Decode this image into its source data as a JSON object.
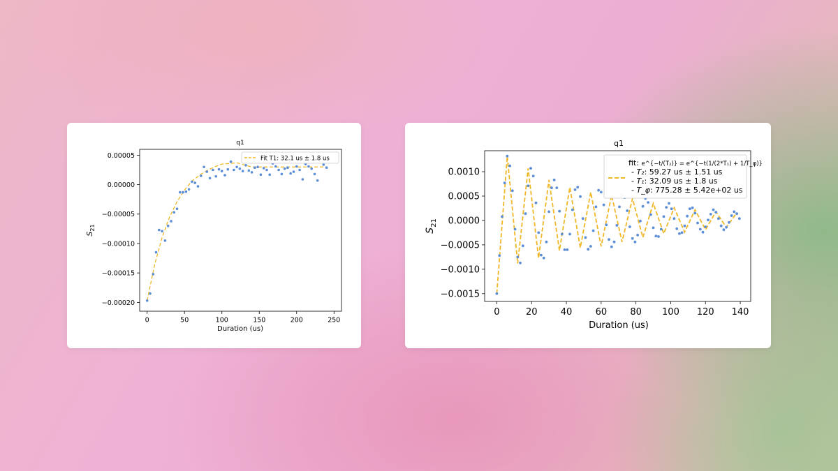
{
  "charts": [
    {
      "type": "scatter",
      "title": "q1",
      "xlabel": "Duration (us)",
      "ylabel_main": "S",
      "ylabel_sub": "21",
      "xlim": [
        -10,
        260
      ],
      "ylim": [
        -0.000215,
        6e-05
      ],
      "xticks": [
        0,
        50,
        100,
        150,
        200,
        250
      ],
      "xtick_labels": [
        "0",
        "50",
        "100",
        "150",
        "200",
        "250"
      ],
      "yticks": [
        5e-05,
        0.0,
        -5e-05,
        -0.0001,
        -0.00015,
        -0.0002
      ],
      "ytick_labels": [
        "0.00005",
        "0.00000",
        "−0.00005",
        "−0.00010",
        "−0.00015",
        "−0.00020"
      ],
      "legend_position": "top-right",
      "legend_label": "Fit T1: 32.1 us ± 1.8 us"
    },
    {
      "type": "scatter",
      "title": "q1",
      "xlabel": "Duration (us)",
      "ylabel_main": "S",
      "ylabel_sub": "21",
      "xlim": [
        -7,
        146
      ],
      "ylim": [
        -0.00166,
        0.00143
      ],
      "xticks": [
        0,
        20,
        40,
        60,
        80,
        100,
        120,
        140
      ],
      "xtick_labels": [
        "0",
        "20",
        "40",
        "60",
        "80",
        "100",
        "120",
        "140"
      ],
      "yticks": [
        0.001,
        0.0005,
        0.0,
        -0.0005,
        -0.001,
        -0.0015
      ],
      "ytick_labels": [
        "0.0010",
        "0.0005",
        "0.0000",
        "−0.0005",
        "−0.0010",
        "−0.0015"
      ],
      "legend_position": "top-right",
      "legend_line1_prefix": "fit: ",
      "legend_line1_formula": "e^{−t/(T₂)} = e^{−t(1/(2*T₁) + 1/T_φ)}",
      "legend_line2_label": "- T₂",
      "legend_line2_value": ": 59.27 us ± 1.51 us",
      "legend_line3_label": "- T₁",
      "legend_line3_value": ": 32.09 us ± 1.8 us",
      "legend_line4_label": "- T_φ",
      "legend_line4_value": ": 775.28 ± 5.42e+02 us"
    }
  ],
  "chart_data": [
    {
      "type": "scatter",
      "title": "q1",
      "xlabel": "Duration (us)",
      "ylabel": "S_21",
      "xlim": [
        -10,
        260
      ],
      "ylim": [
        -0.000215,
        6e-05
      ],
      "grid": false,
      "series": [
        {
          "name": "data",
          "color": "#5b8ed6",
          "x": [
            0,
            4,
            8,
            12,
            16,
            20,
            24,
            28,
            32,
            36,
            40,
            44,
            48,
            52,
            56,
            60,
            64,
            68,
            72,
            76,
            80,
            84,
            88,
            92,
            96,
            100,
            104,
            108,
            112,
            116,
            120,
            124,
            128,
            132,
            136,
            140,
            144,
            148,
            152,
            156,
            160,
            164,
            168,
            172,
            176,
            180,
            184,
            188,
            192,
            196,
            200,
            204,
            208,
            212,
            216,
            220,
            224,
            228,
            232,
            236,
            240
          ],
          "y": [
            -0.000197,
            -0.000185,
            -0.000152,
            -0.000115,
            -7.7e-05,
            -7.9e-05,
            -9.5e-05,
            -7e-05,
            -6.2e-05,
            -4.7e-05,
            -4.1e-05,
            -1.3e-05,
            -1.3e-05,
            -1.2e-05,
            -8e-06,
            5e-06,
            3e-06,
            -3e-06,
            1.5e-05,
            3e-05,
            2.2e-05,
            1.1e-05,
            2.5e-05,
            1.4e-05,
            2.6e-05,
            2.3e-05,
            1.6e-05,
            2.6e-05,
            3.9e-05,
            2.5e-05,
            3e-05,
            2.7e-05,
            2.3e-05,
            3.3e-05,
            2.4e-05,
            2.1e-05,
            2.9e-05,
            3e-05,
            1.7e-05,
            2.8e-05,
            2.5e-05,
            1.7e-05,
            3.6e-05,
            3.1e-05,
            2.5e-05,
            1.8e-05,
            2.7e-05,
            2.9e-05,
            1.9e-05,
            2.2e-05,
            3.1e-05,
            2.5e-05,
            9e-06,
            3.5e-05,
            3.1e-05,
            2.7e-05,
            1.8e-05,
            7e-06,
            4e-05,
            3.4e-05,
            2.9e-05
          ]
        },
        {
          "name": "Fit T1: 32.1 us ± 1.8 us",
          "color": "#f0b828",
          "style": "dashed",
          "model": "y = 0.00003 - 0.000227 * exp(-x/32.1)",
          "x": [
            0,
            10,
            20,
            30,
            40,
            50,
            60,
            70,
            80,
            90,
            100,
            120,
            140,
            160,
            180,
            200,
            220,
            240
          ],
          "y": [
            -0.000197,
            -0.000136,
            -9e-05,
            -5.5e-05,
            -2.9e-05,
            -9e-06,
            6e-06,
            1.6e-05,
            2.4e-05,
            3e-05,
            3.5e-05,
            3.7e-05,
            3e-05,
            3e-05,
            3e-05,
            3e-05,
            3e-05,
            3e-05
          ]
        }
      ]
    },
    {
      "type": "scatter",
      "title": "q1",
      "xlabel": "Duration (us)",
      "ylabel": "S_21",
      "xlim": [
        -7,
        146
      ],
      "ylim": [
        -0.00166,
        0.00143
      ],
      "grid": false,
      "series": [
        {
          "name": "data",
          "color": "#5b8ed6",
          "x": [
            0,
            1.5,
            3,
            4.5,
            6,
            7.5,
            9,
            10.5,
            12,
            13.5,
            15,
            16.5,
            18,
            19.5,
            21,
            22.5,
            24,
            25.5,
            27,
            28.5,
            30,
            31.5,
            33,
            34.5,
            36,
            37.5,
            39,
            40.5,
            42,
            43.5,
            45,
            46.5,
            48,
            49.5,
            51,
            52.5,
            54,
            55.5,
            57,
            58.5,
            60,
            61.5,
            63,
            64.5,
            66,
            67.5,
            69,
            70.5,
            72,
            73.5,
            75,
            76.5,
            78,
            79.5,
            81,
            82.5,
            84,
            85.5,
            87,
            88.5,
            90,
            91.5,
            93,
            94.5,
            96,
            97.5,
            99,
            100.5,
            102,
            103.5,
            105,
            106.5,
            108,
            109.5,
            111,
            112.5,
            114,
            115.5,
            117,
            118.5,
            120,
            121.5,
            123,
            124.5,
            126,
            127.5,
            129,
            130.5,
            132,
            133.5,
            135,
            136.5,
            138,
            139.5
          ],
          "y": [
            -0.0015,
            -0.00072,
            8e-05,
            0.00077,
            0.00132,
            0.00112,
            0.00061,
            -0.00018,
            -0.00075,
            -0.00087,
            -0.00052,
            0.00014,
            0.00071,
            0.00107,
            0.00091,
            0.00036,
            -0.00025,
            -0.00071,
            -0.00077,
            -0.00044,
            0.00018,
            0.00067,
            0.00083,
            0.00067,
            0.00019,
            -0.00028,
            -0.0006,
            -0.0006,
            -0.00028,
            0.00022,
            0.00063,
            0.00068,
            0.00049,
            4e-05,
            -0.00035,
            -0.00059,
            -0.00053,
            -0.00021,
            0.00028,
            0.00062,
            0.00058,
            0.00032,
            -9e-05,
            -0.00039,
            -0.00054,
            -0.00044,
            -0.0001,
            0.00028,
            0.00052,
            0.00047,
            0.0002,
            -0.00013,
            -0.00037,
            -0.00044,
            -0.0003,
            -1e-05,
            0.00029,
            0.00045,
            0.00037,
            0.00012,
            -0.00015,
            -0.00032,
            -0.00033,
            -0.00018,
            8e-05,
            0.00027,
            0.00035,
            0.00024,
            4e-05,
            -0.00017,
            -0.00027,
            -0.00025,
            -0.00011,
            9e-05,
            0.00024,
            0.00026,
            0.00015,
            -5e-05,
            -0.00018,
            -0.00024,
            -0.00013,
            1e-05,
            0.00013,
            0.00022,
            0.00017,
            4e-05,
            -0.00011,
            -0.00019,
            -0.00014,
            -4e-05,
            0.0001,
            0.00018,
            0.00014,
            4e-05
          ]
        },
        {
          "name": "fit",
          "color": "#f0b828",
          "style": "dashed",
          "model": "y = 0.00008 * ... ; damped cosine, period ≈ 12.2 us, T2 = 59.27 us",
          "x": [
            0,
            6,
            12,
            18,
            24,
            30,
            36,
            42,
            48,
            54,
            60,
            66,
            72,
            78,
            84,
            90,
            96,
            102,
            108,
            114,
            120,
            126,
            132,
            138
          ],
          "y": [
            -0.0015,
            0.00132,
            -0.00088,
            0.00107,
            -0.00077,
            0.00083,
            -0.00062,
            0.00068,
            -0.00056,
            0.00058,
            -0.00053,
            0.00052,
            -0.00044,
            0.00045,
            -0.00035,
            0.00035,
            -0.00027,
            0.00026,
            -0.00024,
            0.00022,
            -0.00019,
            0.00018,
            -0.00014,
            0.00016
          ]
        }
      ]
    }
  ]
}
